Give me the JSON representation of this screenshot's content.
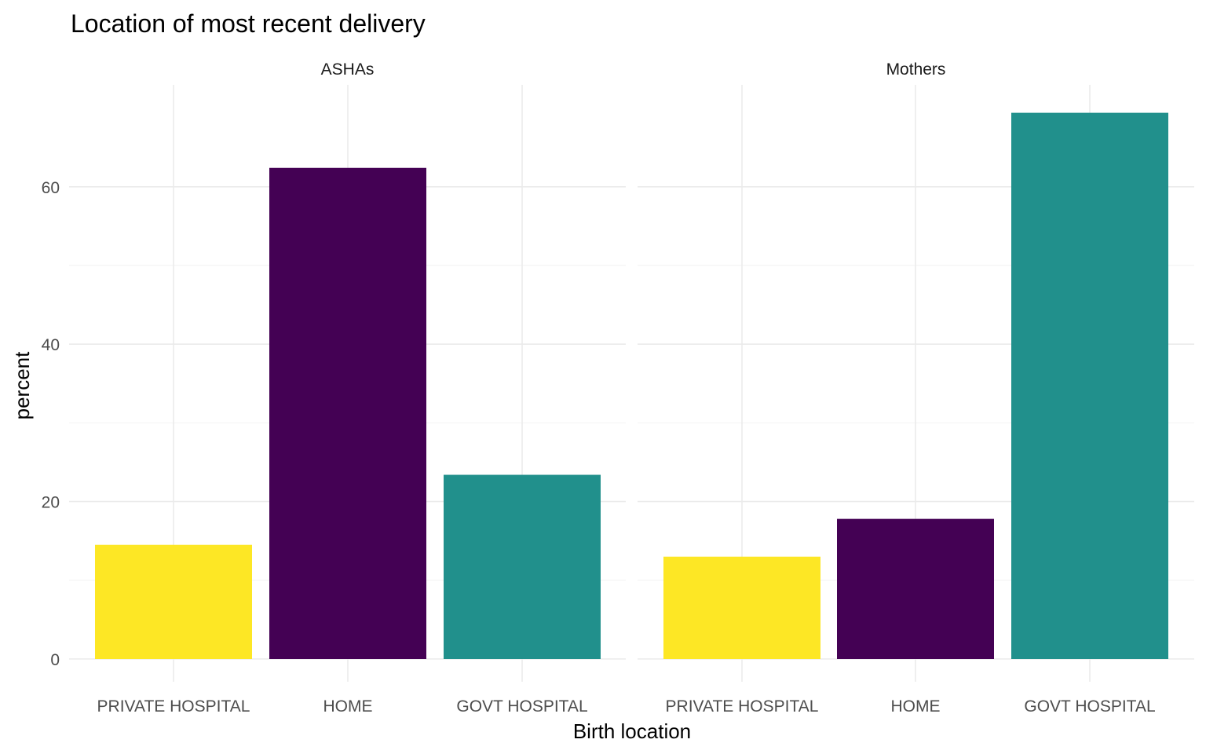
{
  "chart_data": {
    "type": "bar",
    "title": "Location of most recent delivery",
    "xlabel": "Birth location",
    "ylabel": "percent",
    "categories": [
      "PRIVATE HOSPITAL",
      "HOME",
      "GOVT HOSPITAL"
    ],
    "category_colors": [
      "#FDE725",
      "#440154",
      "#21908C"
    ],
    "ylim": [
      0,
      70
    ],
    "yticks": [
      0,
      20,
      40,
      60
    ],
    "grid": true,
    "legend": "none",
    "panels": [
      {
        "name": "ASHAs",
        "values": [
          14.5,
          62.4,
          23.4
        ]
      },
      {
        "name": "Mothers",
        "values": [
          13.0,
          17.8,
          69.4
        ]
      }
    ]
  }
}
